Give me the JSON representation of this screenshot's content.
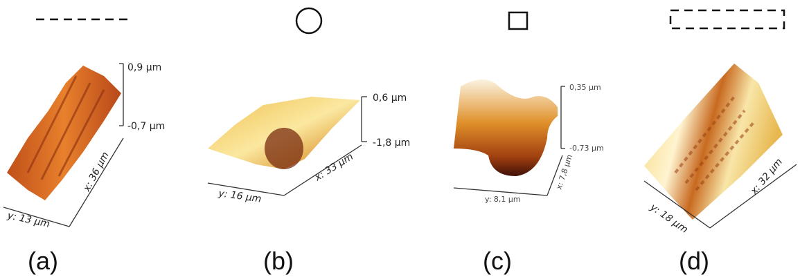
{
  "panels": [
    {
      "caption": "(a)",
      "z_top": "0,9 µm",
      "z_bottom": "-0,7 µm",
      "x_label": "x: 36 µm",
      "y_label": "y: 13 µm"
    },
    {
      "caption": "(b)",
      "z_top": "0,6 µm",
      "z_bottom": "-1,8 µm",
      "x_label": "x: 33 µm",
      "y_label": "y: 16 µm"
    },
    {
      "caption": "(c)",
      "z_top": "0,35 µm",
      "z_bottom": "-0,73 µm",
      "x_label": "x: 7,8 µm",
      "y_label": "y: 8,1 µm"
    },
    {
      "caption": "(d)",
      "x_label": "x: 32 µm",
      "y_label": "y: 18 µm"
    }
  ]
}
